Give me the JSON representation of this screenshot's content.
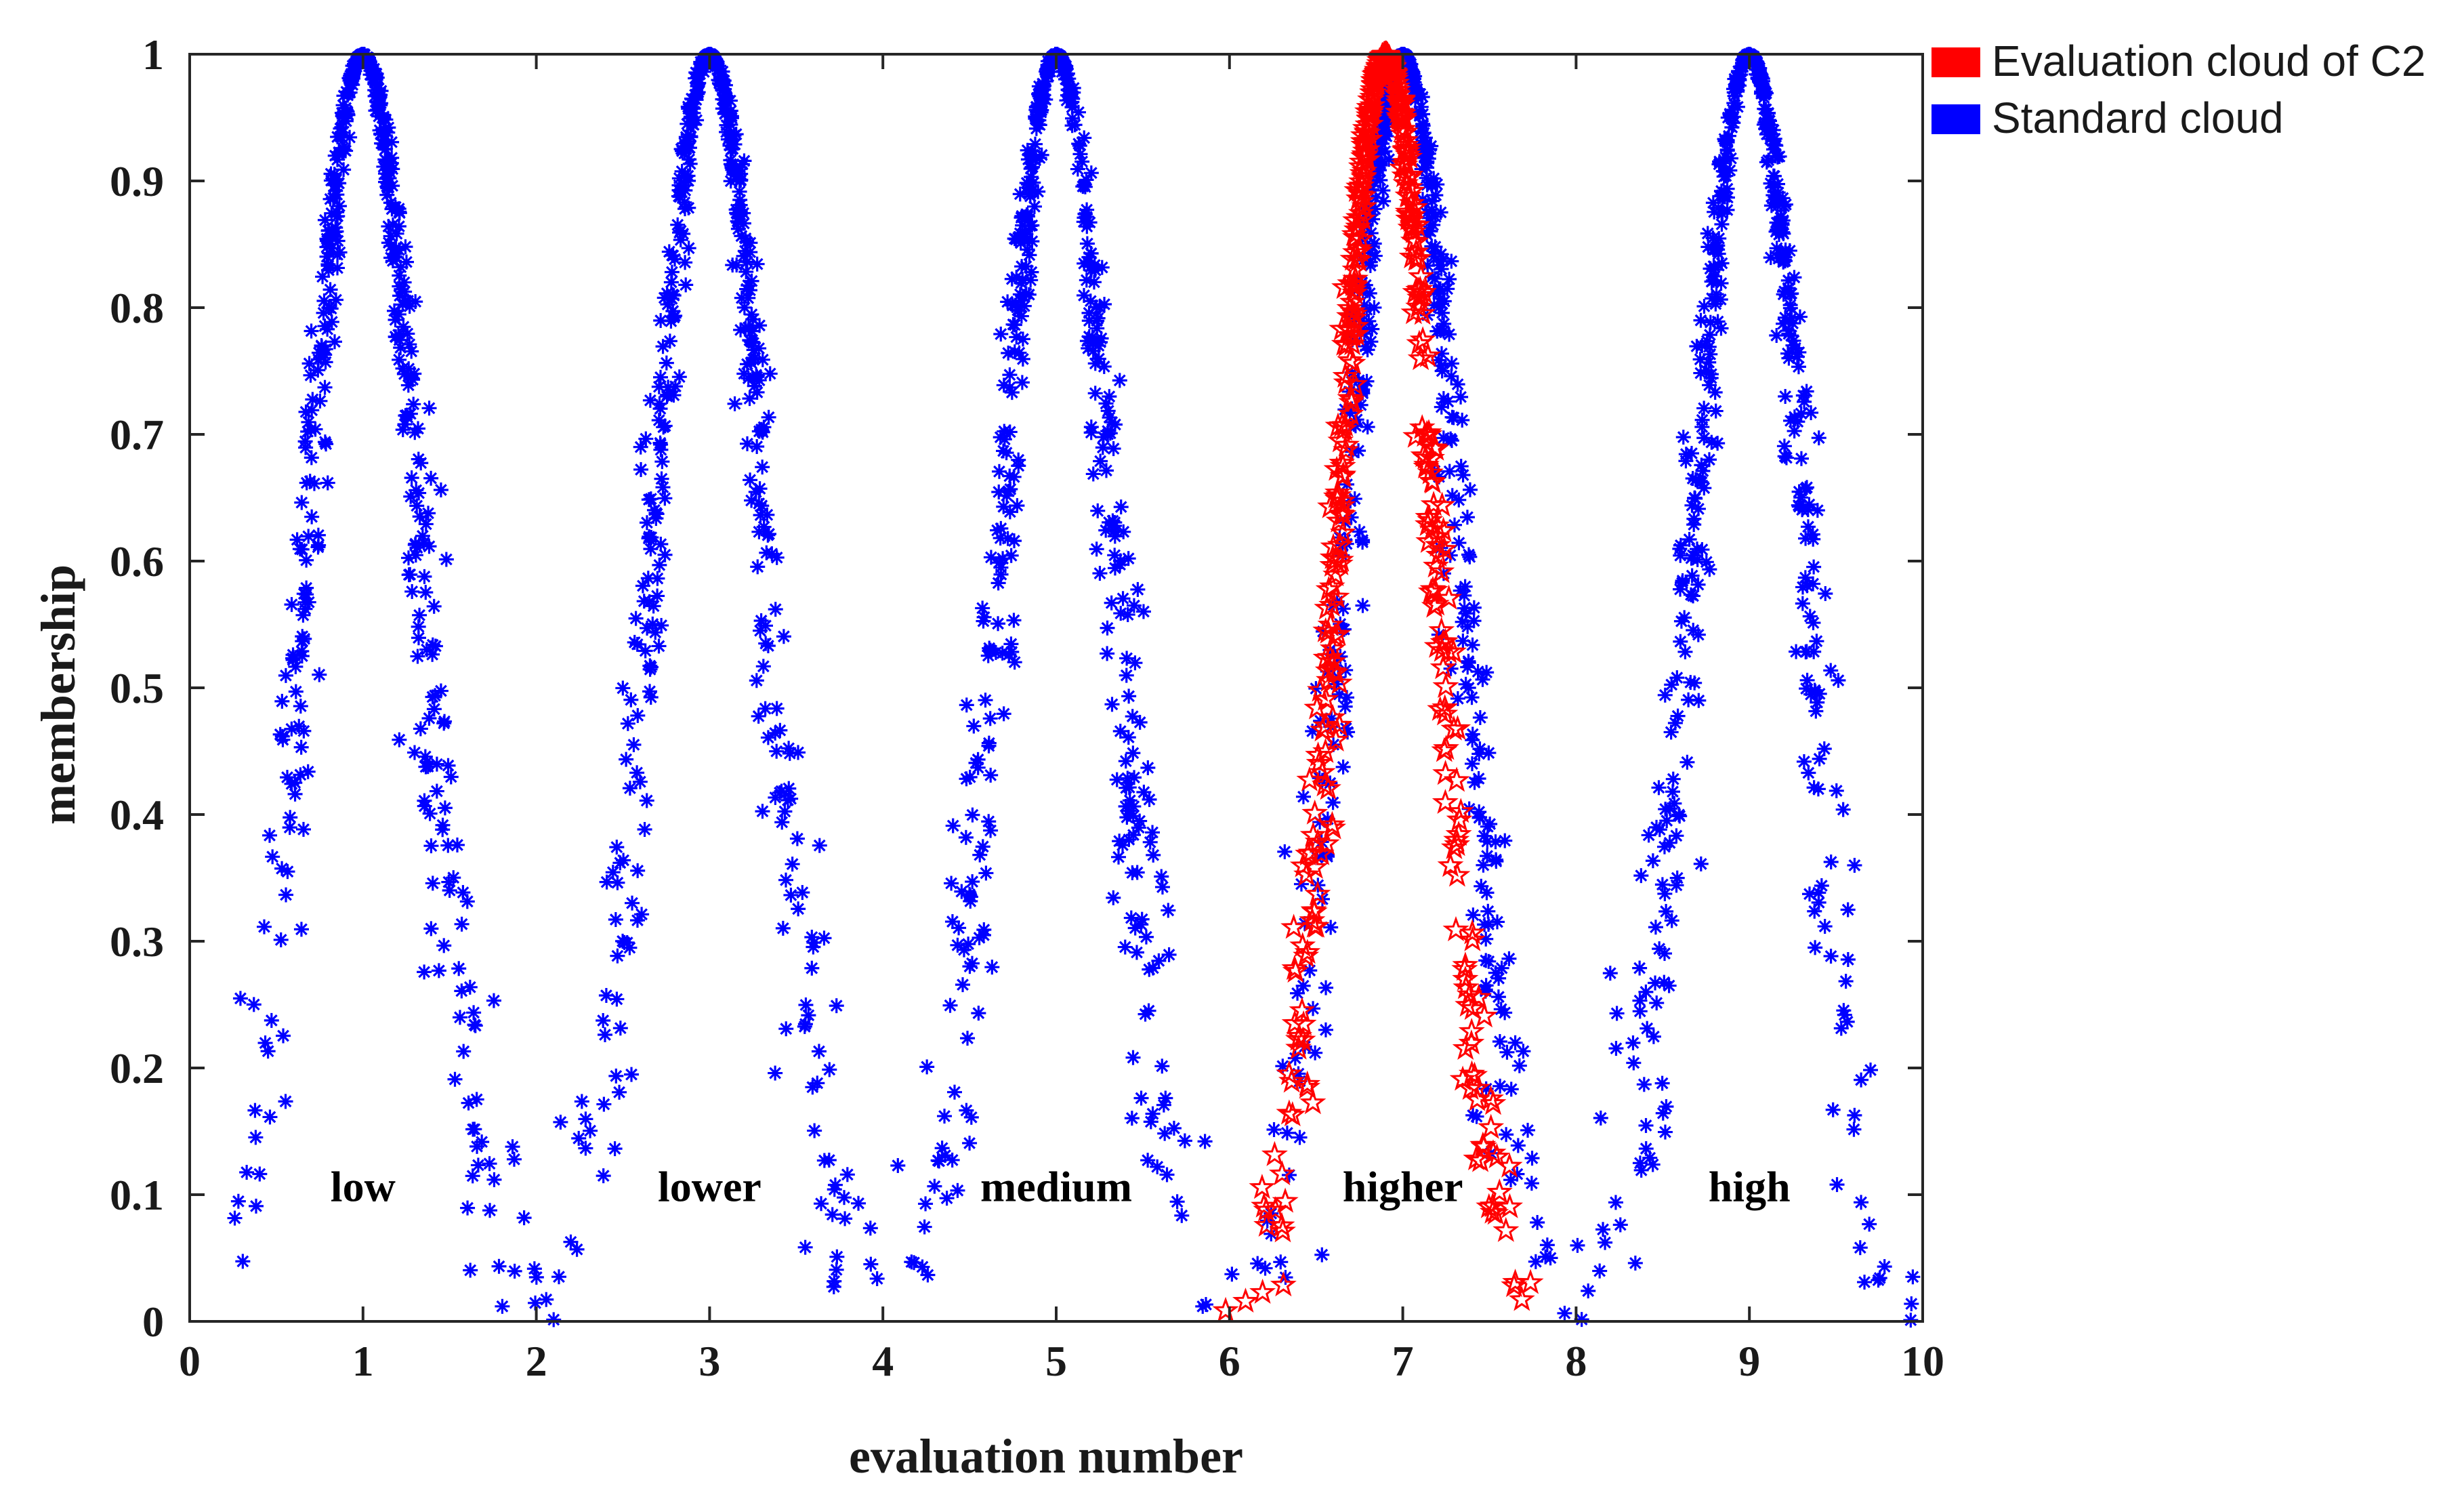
{
  "chart_data": {
    "type": "scatter",
    "title": "",
    "xlabel": "evaluation number",
    "ylabel": "membership",
    "xlim": [
      0,
      10
    ],
    "ylim": [
      0,
      1
    ],
    "xticks": [
      "0",
      "1",
      "2",
      "3",
      "4",
      "5",
      "6",
      "7",
      "8",
      "9",
      "10"
    ],
    "yticks": [
      "0",
      "0.1",
      "0.2",
      "0.3",
      "0.4",
      "0.5",
      "0.6",
      "0.7",
      "0.8",
      "0.9",
      "1"
    ],
    "grid": false,
    "legend_position": "top-right outside",
    "zone_labels": [
      {
        "text": "low",
        "x": 1.0,
        "y": 0.095
      },
      {
        "text": "lower",
        "x": 3.0,
        "y": 0.095
      },
      {
        "text": "medium",
        "x": 5.0,
        "y": 0.095
      },
      {
        "text": "higher",
        "x": 7.0,
        "y": 0.095
      },
      {
        "text": "high",
        "x": 9.0,
        "y": 0.095
      }
    ],
    "series": [
      {
        "name": "Evaluation cloud of C2",
        "color": "#ff0000",
        "marker": "star",
        "cloud": {
          "Ex": 6.9,
          "En": 0.29,
          "He": 0.03
        },
        "point_count": 500
      },
      {
        "name": "Standard cloud",
        "color": "#0000ff",
        "marker": "asterisk",
        "clouds": [
          {
            "Ex": 1,
            "En": 0.33,
            "He": 0.05
          },
          {
            "Ex": 3,
            "En": 0.33,
            "He": 0.05
          },
          {
            "Ex": 5,
            "En": 0.33,
            "He": 0.05
          },
          {
            "Ex": 7,
            "En": 0.33,
            "He": 0.05
          },
          {
            "Ex": 9,
            "En": 0.33,
            "He": 0.05
          }
        ],
        "point_count_per_cloud": 500
      }
    ]
  },
  "legend": {
    "items": [
      {
        "label": "Evaluation cloud of C2",
        "color": "#ff0000"
      },
      {
        "label": "Standard cloud",
        "color": "#0000ff"
      }
    ]
  }
}
